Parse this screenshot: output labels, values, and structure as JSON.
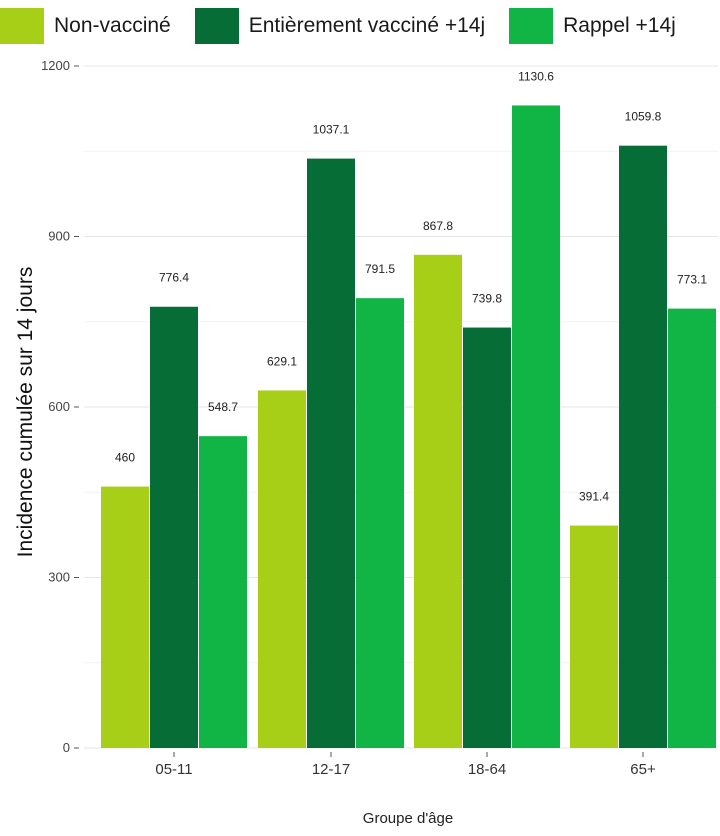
{
  "chart_data": {
    "type": "bar",
    "title": "",
    "xlabel": "Groupe d'âge",
    "ylabel": "Incidence cumulée sur 14 jours",
    "categories": [
      "05-11",
      "12-17",
      "18-64",
      "65+"
    ],
    "series": [
      {
        "name": "Non-vacciné",
        "color": "#a8cf17",
        "values": [
          460,
          629.1,
          867.8,
          391.4
        ],
        "labels": [
          "460",
          "629.1",
          "867.8",
          "391.4"
        ]
      },
      {
        "name": "Entièrement vacciné +14j",
        "color": "#076d37",
        "values": [
          776.4,
          1037.1,
          739.8,
          1059.8
        ],
        "labels": [
          "776.4",
          "1037.1",
          "739.8",
          "1059.8"
        ]
      },
      {
        "name": "Rappel +14j",
        "color": "#11b546",
        "values": [
          548.7,
          791.5,
          1130.6,
          773.1
        ],
        "labels": [
          "548.7",
          "791.5",
          "1130.6",
          "773.1"
        ]
      }
    ],
    "yticks": [
      0,
      300,
      600,
      900,
      1200
    ],
    "ylim": [
      0,
      1200
    ],
    "grid": true,
    "legend_position": "top"
  }
}
